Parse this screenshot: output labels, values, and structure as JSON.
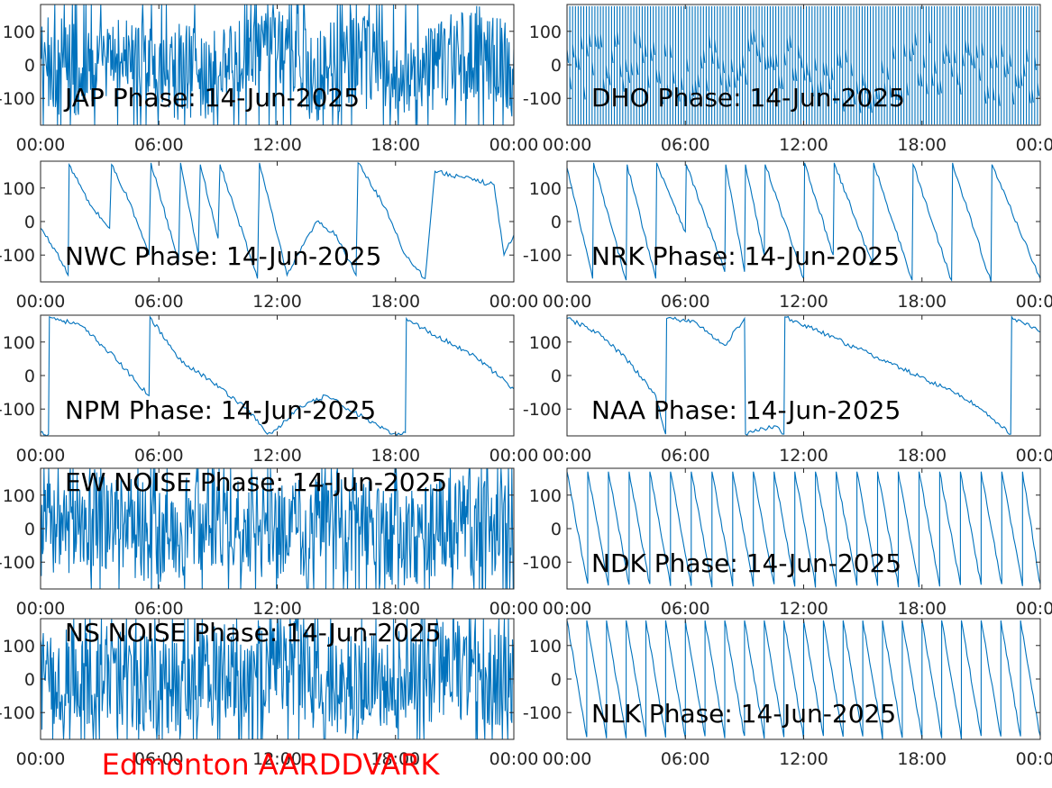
{
  "figure": {
    "footer": "Edmonton AARDDVARK",
    "footer_color": "#FF0000",
    "line_color": "#0072BD"
  },
  "chart_data": [
    {
      "type": "line",
      "title": "JAP Phase: 14-Jun-2025",
      "xlim": [
        "00:00",
        "24:00"
      ],
      "xticks": [
        "00:00",
        "06:00",
        "12:00",
        "18:00",
        "00:00"
      ],
      "ylim": [
        -180,
        180
      ],
      "yticks": [
        100,
        0,
        -100
      ],
      "ytick_labels": [
        "100",
        "0",
        "-100"
      ],
      "pattern": "noise",
      "noise_dense_spans": [
        [
          0,
          2
        ],
        [
          6,
          9
        ],
        [
          13,
          17
        ],
        [
          19.3,
          24
        ]
      ],
      "x": [
        0,
        2,
        4,
        6,
        8,
        10,
        12,
        14,
        16,
        18,
        20,
        22,
        24
      ],
      "y": [
        10,
        -20,
        30,
        0,
        -40,
        20,
        60,
        -30,
        10,
        -50,
        0,
        40,
        -10
      ]
    },
    {
      "type": "line",
      "title": "DHO Phase: 14-Jun-2025",
      "xlim": [
        "00:00",
        "24:00"
      ],
      "xticks": [
        "00:00",
        "06:00",
        "12:00",
        "18:00",
        "00:00"
      ],
      "ylim": [
        -180,
        180
      ],
      "yticks": [
        100,
        0,
        -100
      ],
      "ytick_labels": [
        "100",
        "0",
        "-100"
      ],
      "pattern": "fast_wrap",
      "wraps_per_day": 170,
      "x": [
        0,
        3,
        6,
        9,
        12,
        15,
        18,
        21,
        24
      ],
      "y": [
        0,
        40,
        -20,
        60,
        0,
        -40,
        30,
        -10,
        0
      ]
    },
    {
      "type": "line",
      "title": "NWC Phase: 14-Jun-2025",
      "xlim": [
        "00:00",
        "24:00"
      ],
      "xticks": [
        "00:00",
        "06:00",
        "12:00",
        "18:00",
        "00:00"
      ],
      "ylim": [
        -180,
        180
      ],
      "yticks": [
        100,
        0,
        -100
      ],
      "ytick_labels": [
        "100",
        "0",
        "-100"
      ],
      "pattern": "points",
      "x": [
        0,
        0.7,
        1.4,
        1.45,
        2.5,
        3.5,
        3.6,
        4.5,
        5.5,
        5.6,
        7.0,
        7.1,
        8.0,
        8.1,
        9.0,
        9.1,
        11.0,
        11.1,
        12.5,
        14.0,
        15.0,
        16.0,
        16.1,
        17.5,
        18.5,
        19.5,
        20.0,
        21.5,
        23.0,
        23.5,
        24.0
      ],
      "y": [
        -20,
        -80,
        -160,
        170,
        50,
        -20,
        170,
        60,
        -100,
        175,
        -120,
        175,
        -100,
        170,
        -50,
        170,
        -170,
        175,
        -160,
        0,
        -40,
        -160,
        175,
        40,
        -100,
        -170,
        150,
        130,
        110,
        -100,
        -40
      ]
    },
    {
      "type": "line",
      "title": "NRK Phase: 14-Jun-2025",
      "xlim": [
        "00:00",
        "24:00"
      ],
      "xticks": [
        "00:00",
        "06:00",
        "12:00",
        "18:00",
        "00:00"
      ],
      "ylim": [
        -180,
        180
      ],
      "yticks": [
        100,
        0,
        -100
      ],
      "ytick_labels": [
        "100",
        "0",
        "-100"
      ],
      "pattern": "points",
      "x": [
        0,
        1.3,
        1.35,
        3.0,
        3.05,
        4.5,
        4.55,
        6.0,
        6.05,
        8.0,
        8.05,
        9.0,
        9.05,
        10.0,
        10.05,
        12.0,
        12.05,
        13.5,
        13.55,
        15.5,
        15.55,
        17.5,
        17.55,
        19.5,
        19.55,
        21.5,
        21.55,
        24.0
      ],
      "y": [
        160,
        -170,
        175,
        -175,
        170,
        -170,
        175,
        -30,
        170,
        -150,
        170,
        -150,
        170,
        -100,
        170,
        -170,
        175,
        -100,
        175,
        -130,
        175,
        -175,
        170,
        -175,
        175,
        -180,
        170,
        -170
      ]
    },
    {
      "type": "line",
      "title": "NPM Phase: 14-Jun-2025",
      "xlim": [
        "00:00",
        "24:00"
      ],
      "xticks": [
        "00:00",
        "06:00",
        "12:00",
        "18:00",
        "00:00"
      ],
      "ylim": [
        -180,
        180
      ],
      "yticks": [
        100,
        0,
        -100
      ],
      "ytick_labels": [
        "100",
        "0",
        "-100"
      ],
      "pattern": "points",
      "x": [
        0,
        0.4,
        0.45,
        2,
        3.5,
        5.5,
        5.55,
        7,
        8.5,
        10.5,
        11.5,
        12,
        13,
        14.5,
        16.5,
        17.8,
        18.5,
        18.55,
        20,
        21,
        22,
        23,
        24
      ],
      "y": [
        -170,
        -175,
        175,
        150,
        70,
        -60,
        175,
        50,
        -10,
        -100,
        -175,
        -160,
        -100,
        -60,
        -130,
        -175,
        -170,
        170,
        120,
        90,
        60,
        10,
        -40
      ]
    },
    {
      "type": "line",
      "title": "NAA Phase: 14-Jun-2025",
      "xlim": [
        "00:00",
        "24:00"
      ],
      "xticks": [
        "00:00",
        "06:00",
        "12:00",
        "18:00",
        "00:00"
      ],
      "ylim": [
        -180,
        180
      ],
      "yticks": [
        100,
        0,
        -100
      ],
      "ytick_labels": [
        "100",
        "0",
        "-100"
      ],
      "pattern": "points",
      "x": [
        0,
        1.5,
        3,
        4.5,
        5,
        5.05,
        6.5,
        7.5,
        8,
        9,
        9.05,
        10.5,
        11,
        11.05,
        14,
        17,
        20,
        21,
        22.5,
        22.55,
        24
      ],
      "y": [
        170,
        130,
        50,
        -60,
        -175,
        170,
        160,
        110,
        90,
        170,
        -175,
        -150,
        -175,
        175,
        100,
        20,
        -60,
        -100,
        -175,
        175,
        130
      ]
    },
    {
      "type": "line",
      "title": "EW NOISE Phase: 14-Jun-2025",
      "xlim": [
        "00:00",
        "24:00"
      ],
      "xticks": [
        "00:00",
        "06:00",
        "12:00",
        "18:00",
        "00:00"
      ],
      "ylim": [
        -180,
        180
      ],
      "yticks": [
        100,
        0,
        -100
      ],
      "ytick_labels": [
        "100",
        "0",
        "-100"
      ],
      "pattern": "noise",
      "x": [
        0,
        3,
        6,
        9,
        12,
        15,
        18,
        21,
        24
      ],
      "y": [
        0,
        30,
        -20,
        40,
        -10,
        20,
        -30,
        10,
        0
      ]
    },
    {
      "type": "line",
      "title": "NDK Phase: 14-Jun-2025",
      "xlim": [
        "00:00",
        "24:00"
      ],
      "xticks": [
        "00:00",
        "06:00",
        "12:00",
        "18:00",
        "00:00"
      ],
      "ylim": [
        -180,
        180
      ],
      "yticks": [
        100,
        0,
        -100
      ],
      "ytick_labels": [
        "100",
        "0",
        "-100"
      ],
      "pattern": "sawtooth",
      "period_hours": 1.05,
      "direction": "down",
      "x": [
        0,
        24
      ],
      "y": [
        170,
        -170
      ]
    },
    {
      "type": "line",
      "title": "NS NOISE Phase: 14-Jun-2025",
      "xlim": [
        "00:00",
        "24:00"
      ],
      "xticks": [
        "00:00",
        "06:00",
        "12:00",
        "18:00",
        "00:00"
      ],
      "ylim": [
        -180,
        180
      ],
      "yticks": [
        100,
        0,
        -100
      ],
      "ytick_labels": [
        "100",
        "0",
        "-100"
      ],
      "pattern": "noise",
      "x": [
        0,
        3,
        6,
        9,
        12,
        15,
        18,
        21,
        24
      ],
      "y": [
        -10,
        20,
        -30,
        10,
        40,
        -20,
        0,
        30,
        -10
      ]
    },
    {
      "type": "line",
      "title": "NLK Phase: 14-Jun-2025",
      "xlim": [
        "00:00",
        "24:00"
      ],
      "xticks": [
        "00:00",
        "06:00",
        "12:00",
        "18:00",
        "00:00"
      ],
      "ylim": [
        -180,
        180
      ],
      "yticks": [
        100,
        0,
        -100
      ],
      "ytick_labels": [
        "100",
        "0",
        "-100"
      ],
      "pattern": "sawtooth",
      "period_hours": 1.0,
      "direction": "down",
      "x": [
        0,
        24
      ],
      "y": [
        175,
        -175
      ]
    }
  ]
}
